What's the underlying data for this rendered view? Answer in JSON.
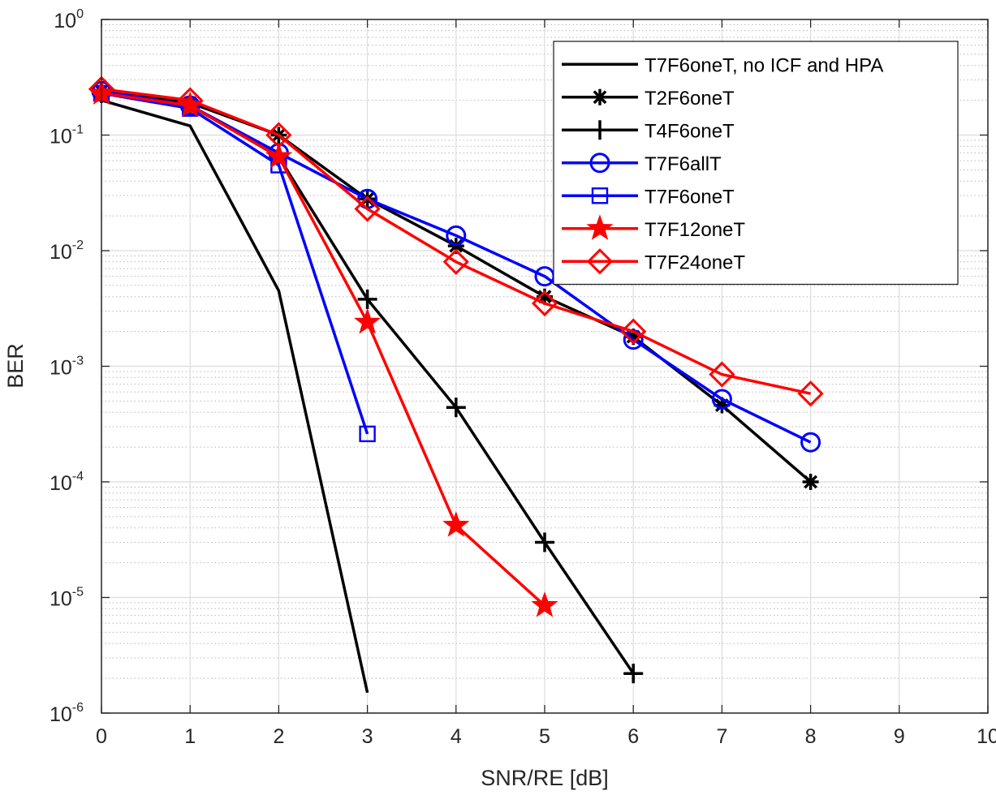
{
  "chart_data": {
    "type": "line",
    "xlabel": "SNR/RE [dB]",
    "ylabel": "BER",
    "xlim": [
      0,
      10
    ],
    "ylim": [
      1e-06,
      1
    ],
    "yscale": "log",
    "grid": true,
    "minor_grid": true,
    "legend_position": "top-right",
    "x_ticks": [
      "0",
      "1",
      "2",
      "3",
      "4",
      "5",
      "6",
      "7",
      "8",
      "9",
      "10"
    ],
    "y_ticks": [
      {
        "base": "10",
        "exp": "0",
        "value": 1
      },
      {
        "base": "10",
        "exp": "-1",
        "value": 0.1
      },
      {
        "base": "10",
        "exp": "-2",
        "value": 0.01
      },
      {
        "base": "10",
        "exp": "-3",
        "value": 0.001
      },
      {
        "base": "10",
        "exp": "-4",
        "value": 0.0001
      },
      {
        "base": "10",
        "exp": "-5",
        "value": 1e-05
      },
      {
        "base": "10",
        "exp": "-6",
        "value": 1e-06
      }
    ],
    "series": [
      {
        "name": "T7F6oneT, no ICF and HPA",
        "color": "#000000",
        "marker": "none",
        "x": [
          0,
          1,
          2,
          3
        ],
        "y": [
          0.2,
          0.12,
          0.0045,
          1.5e-06
        ]
      },
      {
        "name": "T2F6oneT",
        "color": "#000000",
        "marker": "asterisk",
        "x": [
          0,
          1,
          2,
          3,
          4,
          5,
          6,
          7,
          8
        ],
        "y": [
          0.24,
          0.19,
          0.1,
          0.028,
          0.011,
          0.004,
          0.0018,
          0.00046,
          0.0001
        ]
      },
      {
        "name": "T4F6oneT",
        "color": "#000000",
        "marker": "plus",
        "x": [
          0,
          1,
          2,
          3,
          4,
          5,
          6
        ],
        "y": [
          0.23,
          0.18,
          0.065,
          0.0038,
          0.00044,
          3e-05,
          2.2e-06
        ]
      },
      {
        "name": "T7F6allT",
        "color": "#0000ff",
        "marker": "circle",
        "x": [
          0,
          1,
          2,
          3,
          4,
          5,
          6,
          7,
          8
        ],
        "y": [
          0.24,
          0.18,
          0.07,
          0.028,
          0.0135,
          0.006,
          0.0017,
          0.00052,
          0.00022
        ]
      },
      {
        "name": "T7F6oneT",
        "color": "#0000ff",
        "marker": "square",
        "x": [
          0,
          1,
          2,
          3
        ],
        "y": [
          0.23,
          0.17,
          0.055,
          0.00026
        ]
      },
      {
        "name": "T7F12oneT",
        "color": "#ff0000",
        "marker": "star",
        "x": [
          0,
          1,
          2,
          3,
          4,
          5
        ],
        "y": [
          0.23,
          0.18,
          0.065,
          0.0024,
          4.2e-05,
          8.5e-06
        ]
      },
      {
        "name": "T7F24oneT",
        "color": "#ff0000",
        "marker": "diamond",
        "x": [
          0,
          1,
          2,
          3,
          4,
          5,
          6,
          7,
          8
        ],
        "y": [
          0.25,
          0.2,
          0.1,
          0.023,
          0.008,
          0.0035,
          0.002,
          0.00085,
          0.00058
        ]
      }
    ]
  }
}
